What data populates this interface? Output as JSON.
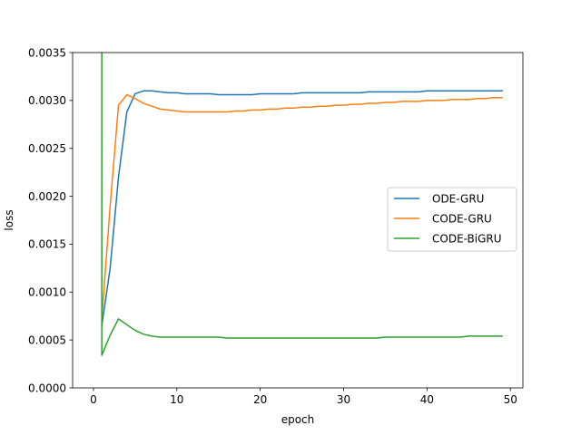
{
  "chart_data": {
    "type": "line",
    "title": "",
    "xlabel": "epoch",
    "ylabel": "loss",
    "xlim": [
      -2.5,
      51.5
    ],
    "ylim": [
      0,
      0.0035
    ],
    "xticks": [
      0,
      10,
      20,
      30,
      40,
      50
    ],
    "xtick_labels": [
      "0",
      "10",
      "20",
      "30",
      "40",
      "50"
    ],
    "yticks": [
      0,
      0.0005,
      0.001,
      0.0015,
      0.002,
      0.0025,
      0.003,
      0.0035
    ],
    "ytick_labels": [
      "0.0000",
      "0.0005",
      "0.0010",
      "0.0015",
      "0.0020",
      "0.0025",
      "0.0030",
      "0.0035"
    ],
    "grid": false,
    "legend_position": "center-right",
    "x": [
      1,
      2,
      3,
      4,
      5,
      6,
      7,
      8,
      9,
      10,
      11,
      12,
      13,
      14,
      15,
      16,
      17,
      18,
      19,
      20,
      21,
      22,
      23,
      24,
      25,
      26,
      27,
      28,
      29,
      30,
      31,
      32,
      33,
      34,
      35,
      36,
      37,
      38,
      39,
      40,
      41,
      42,
      43,
      44,
      45,
      46,
      47,
      48,
      49
    ],
    "series": [
      {
        "name": "ODE-GRU",
        "color": "#1f77b4",
        "values": [
          0.00065,
          0.00125,
          0.0022,
          0.00288,
          0.00307,
          0.0031,
          0.0031,
          0.00309,
          0.00308,
          0.00308,
          0.00307,
          0.00307,
          0.00307,
          0.00307,
          0.00306,
          0.00306,
          0.00306,
          0.00306,
          0.00306,
          0.00307,
          0.00307,
          0.00307,
          0.00307,
          0.00307,
          0.00308,
          0.00308,
          0.00308,
          0.00308,
          0.00308,
          0.00308,
          0.00308,
          0.00308,
          0.00309,
          0.00309,
          0.00309,
          0.00309,
          0.00309,
          0.00309,
          0.00309,
          0.0031,
          0.0031,
          0.0031,
          0.0031,
          0.0031,
          0.0031,
          0.0031,
          0.0031,
          0.0031,
          0.0031
        ]
      },
      {
        "name": "CODE-GRU",
        "color": "#ff7f0e",
        "values": [
          0.00072,
          0.0019,
          0.00295,
          0.00306,
          0.00302,
          0.00297,
          0.00294,
          0.00291,
          0.0029,
          0.00289,
          0.00288,
          0.00288,
          0.00288,
          0.00288,
          0.00288,
          0.00288,
          0.00289,
          0.00289,
          0.0029,
          0.0029,
          0.00291,
          0.00291,
          0.00292,
          0.00292,
          0.00293,
          0.00293,
          0.00294,
          0.00294,
          0.00295,
          0.00295,
          0.00296,
          0.00296,
          0.00297,
          0.00297,
          0.00298,
          0.00298,
          0.00299,
          0.00299,
          0.00299,
          0.003,
          0.003,
          0.003,
          0.00301,
          0.00301,
          0.00301,
          0.00302,
          0.00302,
          0.00303,
          0.00303
        ]
      },
      {
        "name": "CODE-BiGRU",
        "color": "#2ca02c",
        "values": [
          0.00034,
          0.00055,
          0.00072,
          0.00066,
          0.0006,
          0.00056,
          0.00054,
          0.00053,
          0.00053,
          0.00053,
          0.00053,
          0.00053,
          0.00053,
          0.00053,
          0.00053,
          0.00052,
          0.00052,
          0.00052,
          0.00052,
          0.00052,
          0.00052,
          0.00052,
          0.00052,
          0.00052,
          0.00052,
          0.00052,
          0.00052,
          0.00052,
          0.00052,
          0.00052,
          0.00052,
          0.00052,
          0.00052,
          0.00052,
          0.00053,
          0.00053,
          0.00053,
          0.00053,
          0.00053,
          0.00053,
          0.00053,
          0.00053,
          0.00053,
          0.00053,
          0.00054,
          0.00054,
          0.00054,
          0.00054,
          0.00054
        ],
        "spike": {
          "x": 1,
          "from": 0.0035,
          "to": 0.00034
        }
      }
    ]
  }
}
